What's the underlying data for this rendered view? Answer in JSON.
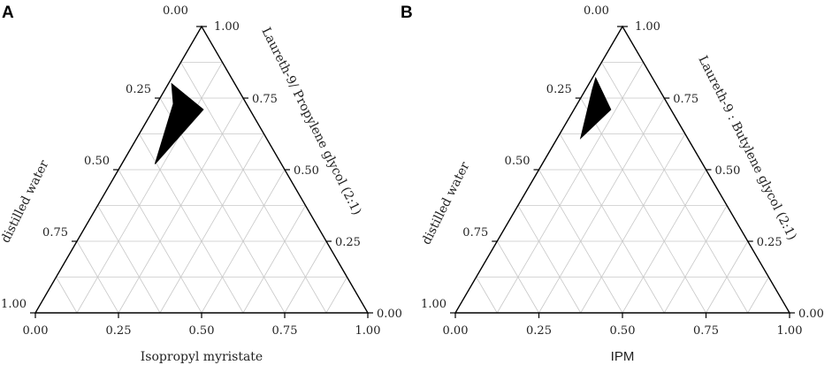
{
  "chart_data": [
    {
      "type": "ternary",
      "panel_label": "A",
      "axes": {
        "bottom_label": "Isopropyl myristate",
        "left_label": "distilled water",
        "right_label": "Laureth-9/ Propylene glycol (2:1)",
        "bottom_label_font": "serif",
        "ticks": [
          "0.00",
          "0.25",
          "0.50",
          "0.75",
          "1.00"
        ],
        "range": [
          0,
          1
        ],
        "grid": true,
        "minor_step": 0.125
      },
      "region": {
        "fill": "#000000",
        "points": [
          {
            "oil": 0.01,
            "water": 0.19,
            "surfactant": 0.8
          },
          {
            "oil": 0.15,
            "water": 0.14,
            "surfactant": 0.71
          },
          {
            "oil": 0.1,
            "water": 0.38,
            "surfactant": 0.52
          },
          {
            "oil": 0.05,
            "water": 0.22,
            "surfactant": 0.73
          }
        ]
      }
    },
    {
      "type": "ternary",
      "panel_label": "B",
      "axes": {
        "bottom_label": "IPM",
        "left_label": "distilled water",
        "right_label": "Laureth-9 : Butylene glycol (2:1)",
        "bottom_label_font": "sans",
        "ticks": [
          "0.00",
          "0.25",
          "0.50",
          "0.75",
          "1.00"
        ],
        "range": [
          0,
          1
        ],
        "grid": true,
        "minor_step": 0.125
      },
      "region": {
        "fill": "#000000",
        "points": [
          {
            "oil": 0.01,
            "water": 0.17,
            "surfactant": 0.82
          },
          {
            "oil": 0.11,
            "water": 0.18,
            "surfactant": 0.71
          },
          {
            "oil": 0.07,
            "water": 0.32,
            "surfactant": 0.61
          },
          {
            "oil": 0.02,
            "water": 0.2,
            "surfactant": 0.78
          }
        ]
      }
    }
  ]
}
